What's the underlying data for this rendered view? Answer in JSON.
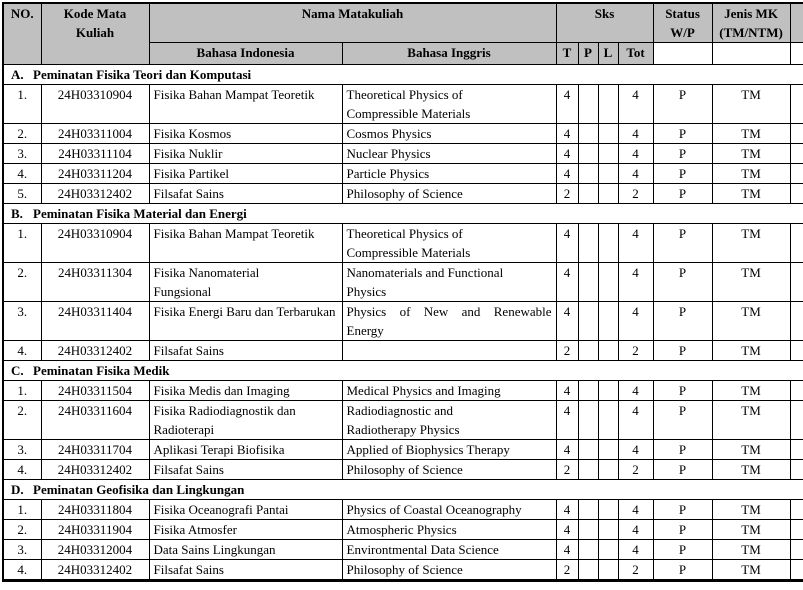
{
  "table": {
    "colors": {
      "header_bg": "#c0c0c0",
      "border": "#000000",
      "text": "#000000"
    },
    "header": {
      "no": "NO.",
      "kode": "Kode Mata\nKuliah",
      "nama": "Nama Matakuliah",
      "bahasa_indonesia": "Bahasa Indonesia",
      "bahasa_inggris": "Bahasa Inggris",
      "sks": "Sks",
      "t": "T",
      "p": "P",
      "l": "L",
      "tot": "Tot",
      "status": "Status\nW/P",
      "jenis": "Jenis MK\n(TM/NTM)"
    },
    "sections": [
      {
        "label": "A.",
        "title": "Peminatan Fisika Teori dan Komputasi",
        "rows": [
          {
            "no": "1.",
            "kode": "24H03310904",
            "id": "Fisika Bahan Mampat Teoretik",
            "en": "Theoretical Physics of\nCompressible Materials",
            "t": "4",
            "p": "",
            "l": "",
            "tot": "4",
            "status": "P",
            "jenis": "TM"
          },
          {
            "no": "2.",
            "kode": "24H03311004",
            "id": "Fisika Kosmos",
            "en": "Cosmos Physics",
            "t": "4",
            "p": "",
            "l": "",
            "tot": "4",
            "status": "P",
            "jenis": "TM"
          },
          {
            "no": "3.",
            "kode": "24H03311104",
            "id": "Fisika Nuklir",
            "en": "Nuclear Physics",
            "t": "4",
            "p": "",
            "l": "",
            "tot": "4",
            "status": "P",
            "jenis": "TM"
          },
          {
            "no": "4.",
            "kode": "24H03311204",
            "id": "Fisika Partikel",
            "en": "Particle Physics",
            "t": "4",
            "p": "",
            "l": "",
            "tot": "4",
            "status": "P",
            "jenis": "TM"
          },
          {
            "no": "5.",
            "kode": "24H03312402",
            "id": "Filsafat Sains",
            "en": "Philosophy of Science",
            "t": "2",
            "p": "",
            "l": "",
            "tot": "2",
            "status": "P",
            "jenis": "TM"
          }
        ]
      },
      {
        "label": "B.",
        "title": "Peminatan Fisika Material dan Energi",
        "rows": [
          {
            "no": "1.",
            "kode": "24H03310904",
            "id": "Fisika Bahan Mampat Teoretik",
            "en": "Theoretical Physics of\nCompressible Materials",
            "t": "4",
            "p": "",
            "l": "",
            "tot": "4",
            "status": "P",
            "jenis": "TM"
          },
          {
            "no": "2.",
            "kode": "24H03311304",
            "id": "Fisika Nanomaterial\nFungsional",
            "en": "Nanomaterials and Functional\nPhysics",
            "t": "4",
            "p": "",
            "l": "",
            "tot": "4",
            "status": "P",
            "jenis": "TM"
          },
          {
            "no": "3.",
            "kode": "24H03311404",
            "id": "Fisika Energi Baru dan Terbarukan",
            "en": "Physics of New and Renewable Energy",
            "justify": true,
            "t": "4",
            "p": "",
            "l": "",
            "tot": "4",
            "status": "P",
            "jenis": "TM"
          },
          {
            "no": "4.",
            "kode": "24H03312402",
            "id": "Filsafat Sains",
            "en": "",
            "t": "2",
            "p": "",
            "l": "",
            "tot": "2",
            "status": "P",
            "jenis": "TM"
          }
        ]
      },
      {
        "label": "C.",
        "title": "Peminatan Fisika Medik",
        "rows": [
          {
            "no": "1.",
            "kode": "24H03311504",
            "id": "Fisika Medis dan Imaging",
            "en": "Medical Physics and Imaging",
            "t": "4",
            "p": "",
            "l": "",
            "tot": "4",
            "status": "P",
            "jenis": "TM"
          },
          {
            "no": "2.",
            "kode": "24H03311604",
            "id": "Fisika Radiodiagnostik dan\nRadioterapi",
            "en": "Radiodiagnostic and\nRadiotherapy Physics",
            "t": "4",
            "p": "",
            "l": "",
            "tot": "4",
            "status": "P",
            "jenis": "TM"
          },
          {
            "no": "3.",
            "kode": "24H03311704",
            "id": "Aplikasi Terapi Biofisika",
            "en": "Applied of Biophysics Therapy",
            "t": "4",
            "p": "",
            "l": "",
            "tot": "4",
            "status": "P",
            "jenis": "TM"
          },
          {
            "no": "4.",
            "kode": "24H03312402",
            "id": "Filsafat Sains",
            "en": "Philosophy of Science",
            "t": "2",
            "p": "",
            "l": "",
            "tot": "2",
            "status": "P",
            "jenis": "TM"
          }
        ]
      },
      {
        "label": "D.",
        "title": "Peminatan Geofisika dan Lingkungan",
        "rows": [
          {
            "no": "1.",
            "kode": "24H03311804",
            "id": "Fisika Oceanografi Pantai",
            "en": "Physics of Coastal Oceanography",
            "t": "4",
            "p": "",
            "l": "",
            "tot": "4",
            "status": "P",
            "jenis": "TM"
          },
          {
            "no": "2.",
            "kode": "24H03311904",
            "id": "Fisika Atmosfer",
            "en": "Atmospheric Physics",
            "t": "4",
            "p": "",
            "l": "",
            "tot": "4",
            "status": "P",
            "jenis": "TM"
          },
          {
            "no": "3.",
            "kode": "24H03312004",
            "id": "Data Sains Lingkungan",
            "en": "Environtmental Data Science",
            "t": "4",
            "p": "",
            "l": "",
            "tot": "4",
            "status": "P",
            "jenis": "TM"
          },
          {
            "no": "4.",
            "kode": "24H03312402",
            "id": "Filsafat Sains",
            "en": "Philosophy of Science",
            "t": "2",
            "p": "",
            "l": "",
            "tot": "2",
            "status": "P",
            "jenis": "TM"
          }
        ]
      }
    ]
  }
}
